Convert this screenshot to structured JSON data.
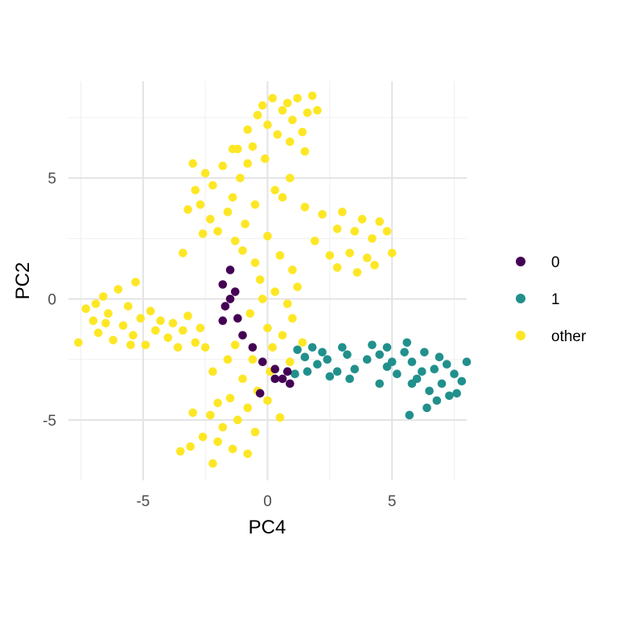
{
  "chart_data": {
    "type": "scatter",
    "title": "",
    "xlabel": "PC4",
    "ylabel": "PC2",
    "xlim": [
      -8,
      8
    ],
    "ylim": [
      -7.5,
      9
    ],
    "x_major_ticks": [
      -5,
      0,
      5
    ],
    "x_tick_labels": [
      "-5",
      "0",
      "5"
    ],
    "x_minor_ticks": [
      -7.5,
      -2.5,
      2.5,
      7.5
    ],
    "y_major_ticks": [
      -5,
      0,
      5
    ],
    "y_tick_labels": [
      "-5",
      "0",
      "5"
    ],
    "y_minor_ticks": [
      -2.5,
      2.5,
      7.5
    ],
    "grid": true,
    "legend_position": "right",
    "series": [
      {
        "name": "0",
        "color": "#440154",
        "values": [
          [
            -1.5,
            1.2
          ],
          [
            -1.8,
            0.6
          ],
          [
            -1.3,
            0.3
          ],
          [
            -1.7,
            -0.3
          ],
          [
            -1.2,
            -0.8
          ],
          [
            -1.8,
            -0.9
          ],
          [
            -1.0,
            -1.5
          ],
          [
            -0.6,
            -2.0
          ],
          [
            -0.2,
            -2.6
          ],
          [
            0.3,
            -2.9
          ],
          [
            0.6,
            -3.3
          ],
          [
            0.9,
            -3.5
          ],
          [
            -0.3,
            -3.9
          ],
          [
            0.3,
            -3.3
          ],
          [
            0.8,
            -3.0
          ],
          [
            -1.5,
            0.0
          ]
        ]
      },
      {
        "name": "1",
        "color": "#21908C",
        "values": [
          [
            1.2,
            -2.1
          ],
          [
            1.5,
            -2.4
          ],
          [
            1.8,
            -2.0
          ],
          [
            2.0,
            -2.7
          ],
          [
            2.4,
            -2.5
          ],
          [
            2.8,
            -3.0
          ],
          [
            1.1,
            -3.1
          ],
          [
            1.6,
            -3.0
          ],
          [
            3.2,
            -2.3
          ],
          [
            3.5,
            -2.9
          ],
          [
            4.0,
            -2.5
          ],
          [
            4.2,
            -1.9
          ],
          [
            4.5,
            -2.3
          ],
          [
            4.8,
            -2.0
          ],
          [
            5.0,
            -2.6
          ],
          [
            5.2,
            -3.1
          ],
          [
            5.5,
            -2.2
          ],
          [
            5.6,
            -1.8
          ],
          [
            5.8,
            -2.6
          ],
          [
            6.0,
            -3.3
          ],
          [
            6.2,
            -3.0
          ],
          [
            6.3,
            -2.2
          ],
          [
            6.5,
            -3.8
          ],
          [
            6.7,
            -2.9
          ],
          [
            6.8,
            -4.2
          ],
          [
            7.0,
            -3.5
          ],
          [
            7.2,
            -2.7
          ],
          [
            7.3,
            -4.0
          ],
          [
            7.5,
            -3.1
          ],
          [
            7.6,
            -3.9
          ],
          [
            7.8,
            -3.4
          ],
          [
            8.0,
            -2.6
          ],
          [
            5.7,
            -4.8
          ],
          [
            6.4,
            -4.5
          ],
          [
            3.3,
            -3.3
          ],
          [
            2.5,
            -3.2
          ],
          [
            2.2,
            -2.2
          ],
          [
            4.5,
            -3.5
          ],
          [
            5.8,
            -3.5
          ],
          [
            3.0,
            -2.0
          ],
          [
            4.8,
            -2.8
          ],
          [
            6.9,
            -2.4
          ]
        ]
      },
      {
        "name": "other",
        "color": "#FDE725",
        "values": [
          [
            -7.6,
            -1.8
          ],
          [
            -7.3,
            -0.4
          ],
          [
            -7.0,
            -0.9
          ],
          [
            -6.8,
            -1.4
          ],
          [
            -6.6,
            0.1
          ],
          [
            -6.4,
            -0.6
          ],
          [
            -6.2,
            -1.7
          ],
          [
            -6.0,
            0.4
          ],
          [
            -5.8,
            -1.1
          ],
          [
            -5.6,
            -0.3
          ],
          [
            -5.4,
            -1.5
          ],
          [
            -5.3,
            0.7
          ],
          [
            -5.1,
            -0.8
          ],
          [
            -4.9,
            -1.9
          ],
          [
            -4.7,
            -0.5
          ],
          [
            -4.5,
            -1.3
          ],
          [
            -4.3,
            -0.9
          ],
          [
            -4.0,
            -1.6
          ],
          [
            -3.8,
            -1.0
          ],
          [
            -3.6,
            -2.0
          ],
          [
            -3.4,
            -1.3
          ],
          [
            -3.2,
            -0.7
          ],
          [
            -2.9,
            -1.8
          ],
          [
            -2.7,
            -1.2
          ],
          [
            -6.5,
            -1.0
          ],
          [
            -6.9,
            -0.2
          ],
          [
            -5.5,
            -1.9
          ],
          [
            -2.9,
            4.5
          ],
          [
            -2.7,
            3.9
          ],
          [
            -2.5,
            5.2
          ],
          [
            -2.3,
            3.3
          ],
          [
            -2.2,
            4.7
          ],
          [
            -2.0,
            2.8
          ],
          [
            -1.8,
            5.5
          ],
          [
            -1.6,
            3.6
          ],
          [
            -1.4,
            4.2
          ],
          [
            -1.3,
            2.4
          ],
          [
            -1.1,
            5.0
          ],
          [
            -0.9,
            3.1
          ],
          [
            -3.2,
            3.7
          ],
          [
            -3.0,
            5.6
          ],
          [
            -2.6,
            2.7
          ],
          [
            -3.4,
            1.9
          ],
          [
            -1.2,
            6.2
          ],
          [
            -0.8,
            7.0
          ],
          [
            -0.6,
            6.3
          ],
          [
            -0.4,
            7.6
          ],
          [
            -0.2,
            8.0
          ],
          [
            0.0,
            7.2
          ],
          [
            0.2,
            8.3
          ],
          [
            0.4,
            6.8
          ],
          [
            0.6,
            7.8
          ],
          [
            0.8,
            8.1
          ],
          [
            1.0,
            7.4
          ],
          [
            1.2,
            8.3
          ],
          [
            1.4,
            6.9
          ],
          [
            1.6,
            7.7
          ],
          [
            1.8,
            8.4
          ],
          [
            2.0,
            7.8
          ],
          [
            1.5,
            6.1
          ],
          [
            0.9,
            6.5
          ],
          [
            -0.1,
            5.8
          ],
          [
            -0.8,
            5.6
          ],
          [
            -1.4,
            6.2
          ],
          [
            0.9,
            5.0
          ],
          [
            1.5,
            3.8
          ],
          [
            1.9,
            2.4
          ],
          [
            2.2,
            3.5
          ],
          [
            2.5,
            1.8
          ],
          [
            2.8,
            2.9
          ],
          [
            3.0,
            3.6
          ],
          [
            3.3,
            1.9
          ],
          [
            3.5,
            2.8
          ],
          [
            3.8,
            3.3
          ],
          [
            4.0,
            1.7
          ],
          [
            4.2,
            2.5
          ],
          [
            4.5,
            3.2
          ],
          [
            4.8,
            2.8
          ],
          [
            5.0,
            1.9
          ],
          [
            4.3,
            1.4
          ],
          [
            3.6,
            1.1
          ],
          [
            2.8,
            1.3
          ],
          [
            -1.0,
            2.0
          ],
          [
            -0.5,
            1.5
          ],
          [
            0.0,
            2.6
          ],
          [
            0.5,
            1.8
          ],
          [
            1.0,
            1.2
          ],
          [
            -0.3,
            0.8
          ],
          [
            0.3,
            0.3
          ],
          [
            0.8,
            -0.2
          ],
          [
            -0.7,
            -0.6
          ],
          [
            0.0,
            -1.2
          ],
          [
            0.6,
            -1.5
          ],
          [
            1.0,
            -0.8
          ],
          [
            -1.3,
            -1.9
          ],
          [
            -0.6,
            -2.5
          ],
          [
            0.1,
            -3.0
          ],
          [
            -1.0,
            -3.3
          ],
          [
            -0.4,
            -3.8
          ],
          [
            -1.5,
            -4.1
          ],
          [
            -0.8,
            -4.5
          ],
          [
            0.0,
            -4.2
          ],
          [
            0.5,
            -4.9
          ],
          [
            -1.2,
            -5.0
          ],
          [
            -0.5,
            -5.5
          ],
          [
            -1.8,
            -5.3
          ],
          [
            -2.3,
            -4.8
          ],
          [
            -2.0,
            -5.9
          ],
          [
            -1.4,
            -6.2
          ],
          [
            -0.8,
            -6.4
          ],
          [
            -2.6,
            -5.7
          ],
          [
            -2.2,
            -6.8
          ],
          [
            -3.1,
            -6.1
          ],
          [
            -3.5,
            -6.3
          ],
          [
            -3.0,
            -4.7
          ],
          [
            -2.0,
            -4.3
          ],
          [
            -2.2,
            -3.0
          ],
          [
            -1.6,
            -2.5
          ],
          [
            -2.5,
            -2.0
          ],
          [
            1.4,
            -1.8
          ],
          [
            0.9,
            -2.6
          ],
          [
            0.2,
            -2.0
          ],
          [
            -0.2,
            0.0
          ],
          [
            1.2,
            0.5
          ],
          [
            -0.5,
            3.9
          ],
          [
            0.3,
            4.5
          ],
          [
            0.6,
            4.2
          ]
        ]
      }
    ]
  }
}
